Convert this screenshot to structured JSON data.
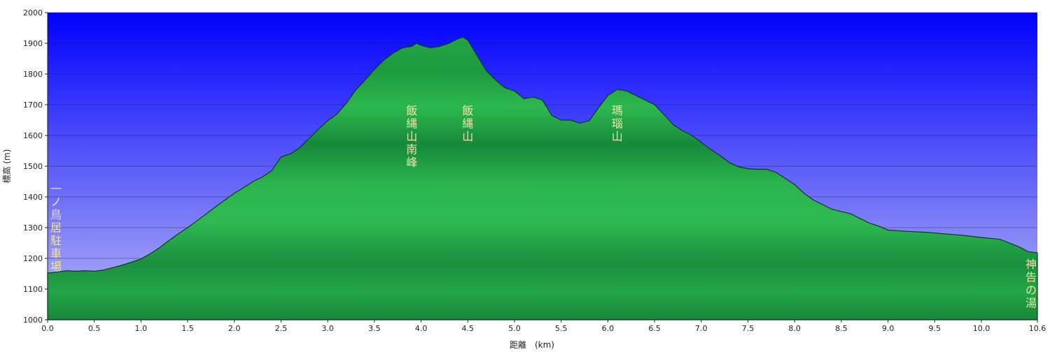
{
  "chart_data": {
    "type": "area",
    "title": "",
    "xlabel": "距離　(km)",
    "ylabel": "標高 (m)",
    "xlim": [
      0,
      10.6
    ],
    "ylim": [
      1000,
      2000
    ],
    "grid": true,
    "x_ticks": [
      "0.0",
      "0.5",
      "1.0",
      "1.5",
      "2.0",
      "2.5",
      "3.0",
      "3.5",
      "4.0",
      "4.5",
      "5.0",
      "5.5",
      "6.0",
      "6.5",
      "7.0",
      "7.5",
      "8.0",
      "8.5",
      "9.0",
      "9.5",
      "10.0",
      "10.6"
    ],
    "x_tick_values": [
      0,
      0.5,
      1,
      1.5,
      2,
      2.5,
      3,
      3.5,
      4,
      4.5,
      5,
      5.5,
      6,
      6.5,
      7,
      7.5,
      8,
      8.5,
      9,
      9.5,
      10,
      10.6
    ],
    "y_ticks": [
      "1000",
      "1100",
      "1200",
      "1300",
      "1400",
      "1500",
      "1600",
      "1700",
      "1800",
      "1900",
      "2000"
    ],
    "y_tick_values": [
      1000,
      1100,
      1200,
      1300,
      1400,
      1500,
      1600,
      1700,
      1800,
      1900,
      2000
    ],
    "colors": {
      "sky_top": "#0000ff",
      "sky_bottom": "#b8b8f4",
      "fill_light": "#2db84f",
      "fill_dark": "#16843a",
      "outline": "#0a3a1a"
    },
    "series": [
      {
        "x": [
          0,
          0.1,
          0.2,
          0.3,
          0.4,
          0.5,
          0.6,
          0.7,
          0.8,
          0.9,
          1.0,
          1.1,
          1.2,
          1.3,
          1.4,
          1.5,
          1.6,
          1.7,
          1.8,
          1.9,
          2.0,
          2.1,
          2.2,
          2.3,
          2.35,
          2.4,
          2.5,
          2.6,
          2.7,
          2.8,
          2.9,
          3.0,
          3.1,
          3.2,
          3.3,
          3.4,
          3.5,
          3.6,
          3.7,
          3.8,
          3.9,
          3.95,
          4.0,
          4.1,
          4.2,
          4.3,
          4.4,
          4.45,
          4.5,
          4.6,
          4.7,
          4.8,
          4.9,
          5.0,
          5.1,
          5.2,
          5.3,
          5.4,
          5.5,
          5.6,
          5.7,
          5.8,
          5.9,
          6.0,
          6.1,
          6.2,
          6.3,
          6.4,
          6.5,
          6.6,
          6.7,
          6.8,
          6.9,
          7.0,
          7.1,
          7.2,
          7.3,
          7.4,
          7.5,
          7.6,
          7.7,
          7.8,
          7.9,
          8.0,
          8.1,
          8.2,
          8.3,
          8.4,
          8.5,
          8.6,
          8.7,
          8.8,
          8.9,
          9.0,
          9.2,
          9.4,
          9.6,
          9.8,
          10.0,
          10.2,
          10.3,
          10.4,
          10.5,
          10.6
        ],
        "y": [
          1152,
          1155,
          1160,
          1158,
          1160,
          1158,
          1162,
          1170,
          1178,
          1188,
          1198,
          1215,
          1235,
          1258,
          1280,
          1300,
          1322,
          1345,
          1368,
          1390,
          1412,
          1430,
          1450,
          1465,
          1475,
          1485,
          1530,
          1540,
          1560,
          1590,
          1620,
          1648,
          1670,
          1705,
          1748,
          1780,
          1815,
          1845,
          1868,
          1885,
          1890,
          1900,
          1893,
          1885,
          1890,
          1900,
          1915,
          1920,
          1910,
          1860,
          1810,
          1780,
          1755,
          1745,
          1720,
          1725,
          1715,
          1665,
          1650,
          1650,
          1640,
          1648,
          1690,
          1730,
          1750,
          1745,
          1730,
          1715,
          1700,
          1668,
          1635,
          1615,
          1600,
          1578,
          1555,
          1535,
          1512,
          1498,
          1492,
          1490,
          1490,
          1480,
          1460,
          1440,
          1412,
          1390,
          1375,
          1360,
          1352,
          1345,
          1330,
          1315,
          1305,
          1292,
          1288,
          1285,
          1280,
          1275,
          1268,
          1262,
          1250,
          1238,
          1222,
          1218
        ]
      }
    ],
    "annotations": [
      {
        "x": 0.1,
        "text": [
          "一",
          "ノ",
          "鳥",
          "居",
          "駐",
          "車",
          "場"
        ]
      },
      {
        "x": 3.9,
        "text": [
          "飯",
          "縄",
          "山",
          "南",
          "峰"
        ]
      },
      {
        "x": 4.5,
        "text": [
          "飯",
          "縄",
          "山"
        ]
      },
      {
        "x": 6.1,
        "text": [
          "瑪",
          "瑙",
          "山"
        ]
      },
      {
        "x": 10.5,
        "text": [
          "神",
          "告",
          "の",
          "湯"
        ]
      }
    ]
  }
}
